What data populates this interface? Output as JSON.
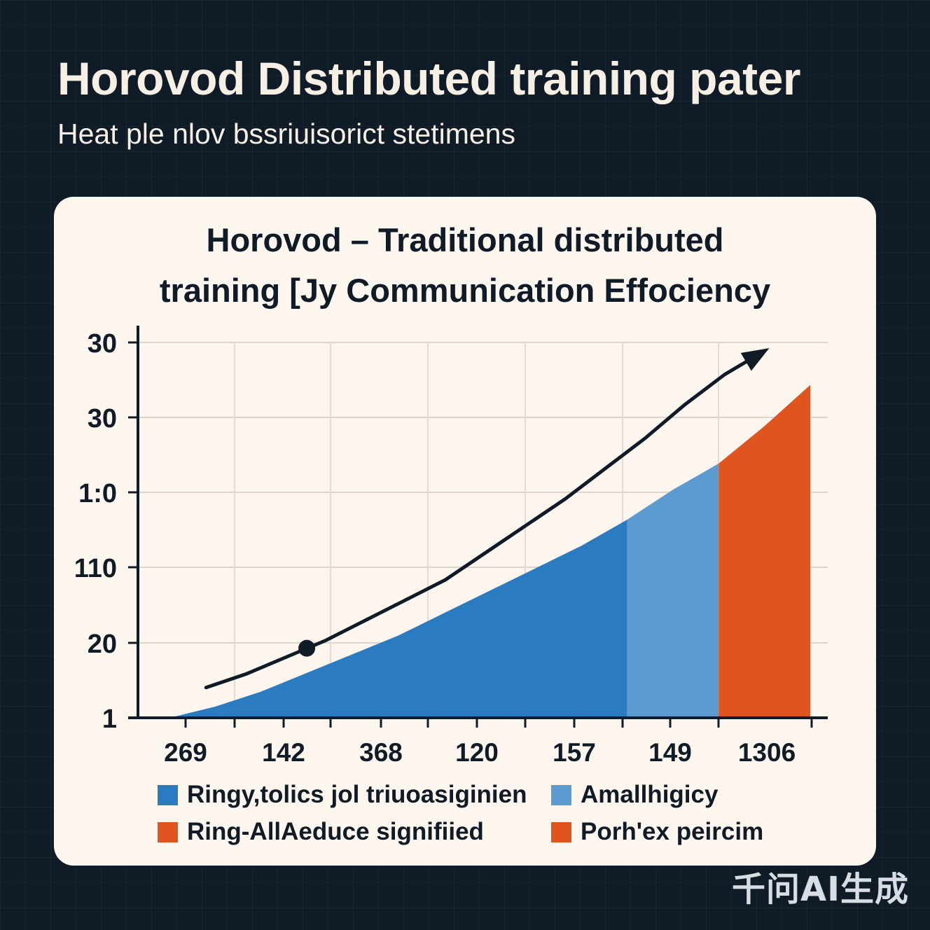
{
  "header": {
    "title": "Horovod Distributed training pater",
    "subtitle": "Heat ple nlov bssriuisorict stetimens"
  },
  "watermark": "千问AI生成",
  "chart_data": {
    "type": "area",
    "title_lines": [
      "Horovod – Traditional distributed",
      "training [Jy Communication Effociency"
    ],
    "y_tick_labels": [
      "30",
      "30",
      "1:0",
      "110",
      "20",
      "1"
    ],
    "x_tick_labels": [
      "269",
      "142",
      "368",
      "120",
      "157",
      "149",
      "1306"
    ],
    "x": [
      0,
      0.5,
      1,
      1.5,
      2,
      2.5,
      3,
      3.5,
      4,
      4.5,
      5,
      5.5,
      6,
      6.5,
      7
    ],
    "area_series": [
      {
        "name": "Ringy,tolics jol triuoasiginien",
        "color": "#2a7bc0",
        "x_range": [
          0,
          5
        ],
        "values": [
          0,
          0.3,
          0.7,
          1.2,
          1.7,
          2.2,
          2.8,
          3.4,
          4.0,
          4.6,
          5.3
        ]
      },
      {
        "name": "Amallhigicy",
        "color": "#5b9bd0",
        "x_range": [
          5,
          6
        ],
        "values": [
          5.3,
          6.1,
          6.8
        ]
      },
      {
        "name": "Ring-AllAeduce signifiied",
        "color": "#e05420",
        "x_range": [
          6,
          7
        ],
        "values": [
          6.8,
          7.8,
          8.9
        ]
      }
    ],
    "trend_line": {
      "values": [
        0.9,
        1.3,
        1.8,
        2.3,
        2.9,
        3.5,
        4.1,
        4.9,
        5.7,
        6.5,
        7.4,
        8.3,
        9.3,
        10.2,
        10.9
      ],
      "x_range": [
        0.4,
        6.5
      ],
      "marker_x": 1.5,
      "marker_value": 1.9,
      "arrow_end": true,
      "color": "#0f1b27"
    },
    "legend": [
      {
        "label": "Ringy,tolics jol triuoasiginien",
        "color": "#2a7bc0"
      },
      {
        "label": "Amallhigicy",
        "color": "#5b9bd0"
      },
      {
        "label": "Ring-AllAeduce signifiied",
        "color": "#e05420"
      },
      {
        "label": "Porh'ex peircim",
        "color": "#e05420"
      }
    ],
    "legend_position": "bottom",
    "grid": true
  }
}
